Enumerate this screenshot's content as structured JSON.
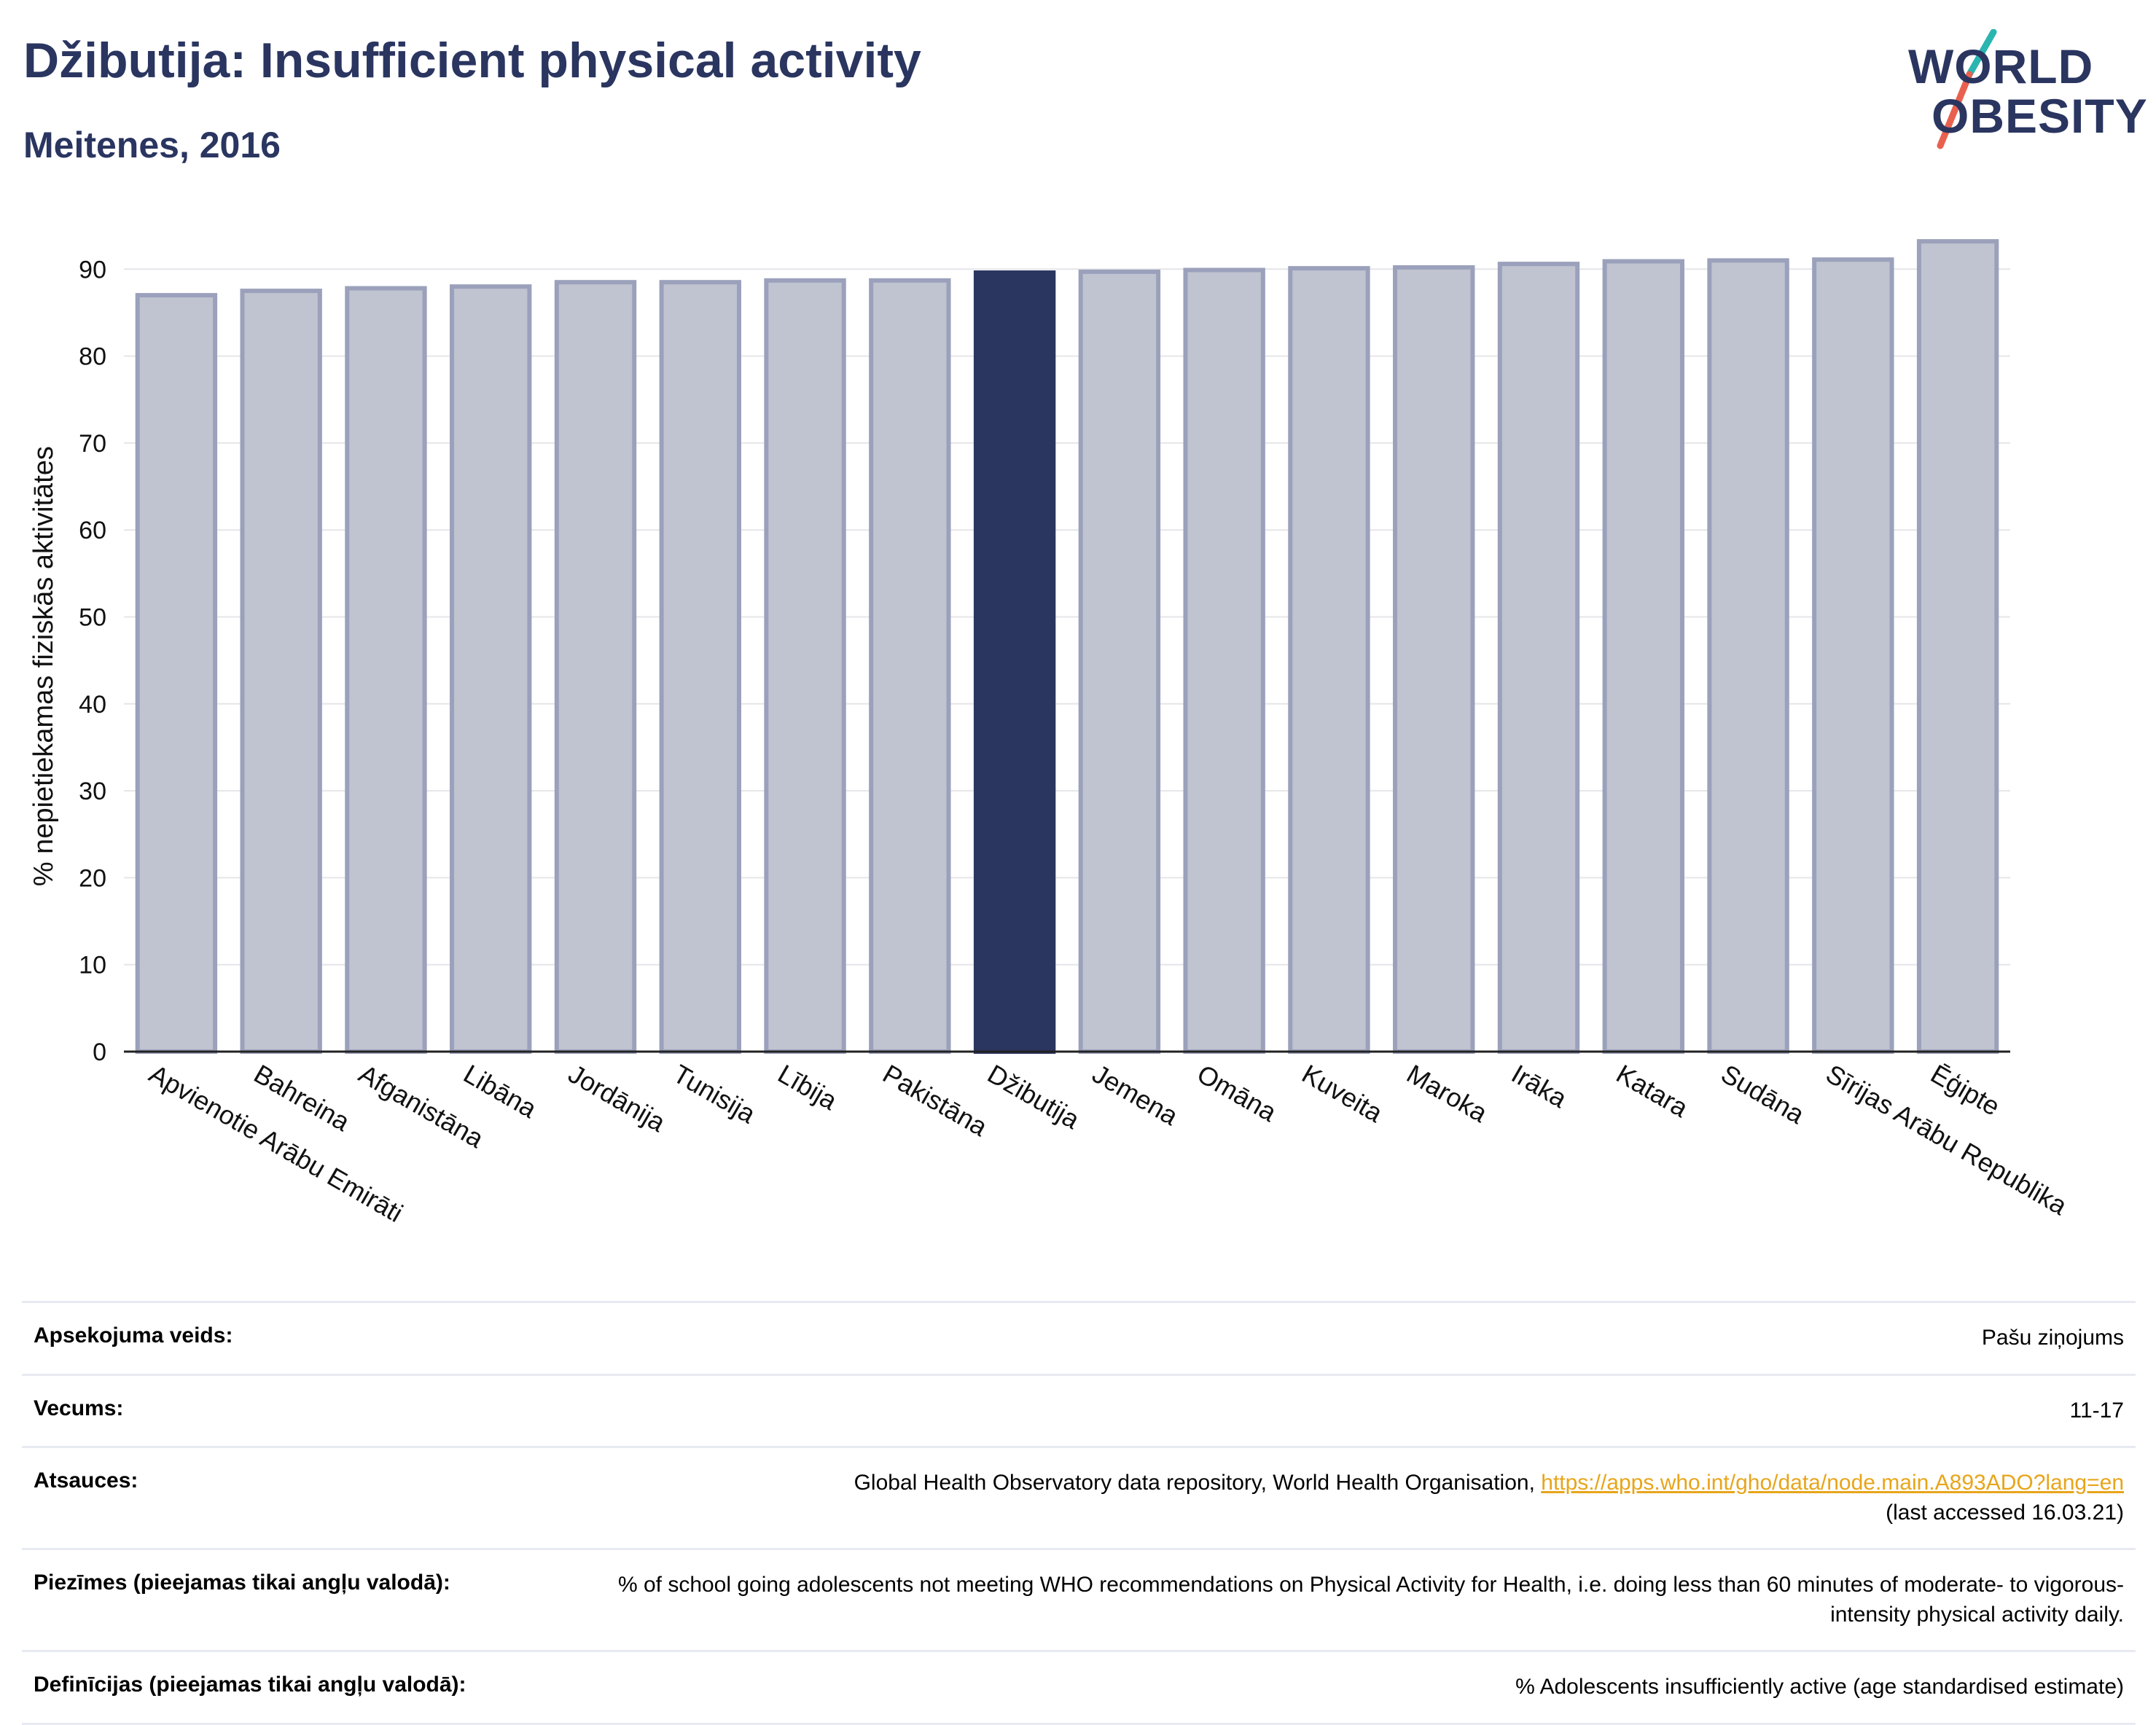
{
  "header": {
    "title": "Džibutija: Insufficient physical activity",
    "subtitle": "Meitenes, 2016"
  },
  "logo": {
    "line1": "WORLD",
    "line2": "OBESITY",
    "accent_teal": "#2ab5b0",
    "accent_red": "#e8614f"
  },
  "colors": {
    "bar": "#c0c3d0",
    "bar_stroke": "#9ba1bb",
    "highlight": "#2a3560",
    "grid": "#e6e6ea"
  },
  "chart_data": {
    "type": "bar",
    "ylabel": "% nepietiekamas fiziskās aktivitātes",
    "ylim": [
      0,
      95
    ],
    "yticks": [
      0,
      10,
      20,
      30,
      40,
      50,
      60,
      70,
      80,
      90
    ],
    "grid": true,
    "highlight": "Džibutija",
    "categories": [
      "Apvienotie Arābu Emirāti",
      "Bahreina",
      "Afganistāna",
      "Libāna",
      "Jordānija",
      "Tunisija",
      "Lībija",
      "Pakistāna",
      "Džibutija",
      "Jemena",
      "Omāna",
      "Kuveita",
      "Maroka",
      "Irāka",
      "Katara",
      "Sudāna",
      "Sīrijas Arābu Republika",
      "Ēģipte"
    ],
    "values": [
      87.0,
      87.5,
      87.8,
      88.0,
      88.5,
      88.5,
      88.7,
      88.7,
      89.6,
      89.7,
      89.9,
      90.1,
      90.2,
      90.6,
      90.9,
      91.0,
      91.1,
      93.2
    ]
  },
  "table": [
    {
      "key": "Apsekojuma veids:",
      "value": "Pašu ziņojums"
    },
    {
      "key": "Vecums:",
      "value": "11-17"
    },
    {
      "key": "Atsauces:",
      "value": "Global Health Observatory data repository, World Health Organisation, ",
      "link": "https://apps.who.int/gho/data/node.main.A893ADO?lang=en",
      "value_after": "(last accessed 16.03.21)"
    },
    {
      "key": "Piezīmes (pieejamas tikai angļu valodā):",
      "value": "% of school going adolescents not meeting WHO recommendations on Physical Activity for Health, i.e. doing less than 60 minutes of moderate- to vigorous-intensity physical activity daily."
    },
    {
      "key": "Definīcijas (pieejamas tikai angļu valodā):",
      "value": "% Adolescents insufficiently active (age standardised estimate)"
    }
  ]
}
